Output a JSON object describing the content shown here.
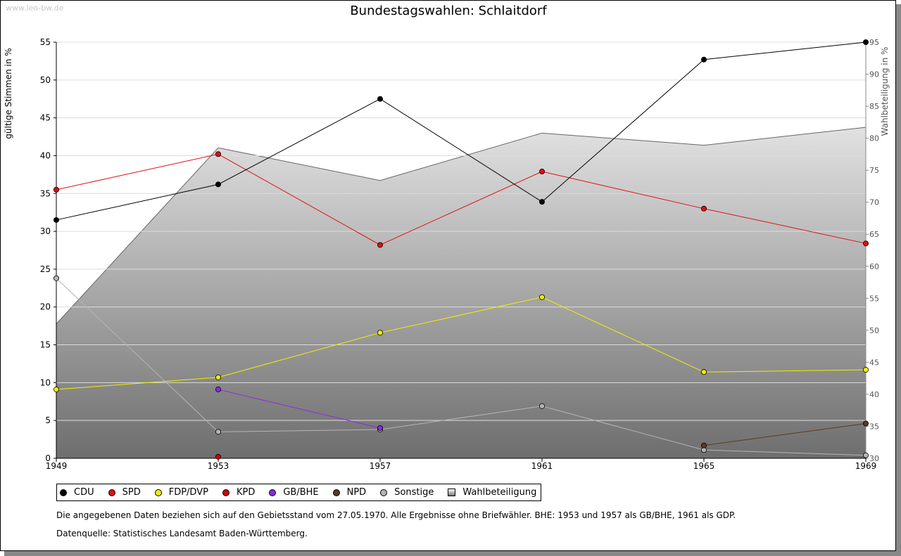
{
  "watermark": "www.leo-bw.de",
  "notes": [
    "Die angegebenen Daten beziehen sich auf den Gebietsstand vom 27.05.1970. Alle Ergebnisse ohne Briefwähler. BHE: 1953 und 1957 als GB/BHE, 1961 als GDP.",
    "Datenquelle: Statistisches Landesamt Baden-Württemberg."
  ],
  "chart_data": {
    "type": "line",
    "title": "Bundestagswahlen: Schlaitdorf",
    "xlabel": "",
    "ylabel": "gültige Stimmen in %",
    "y2label": "Wahlbeteiligung in %",
    "x": [
      1949,
      1953,
      1957,
      1961,
      1965,
      1969
    ],
    "ylim": [
      0,
      55
    ],
    "yticks": [
      0,
      5,
      10,
      15,
      20,
      25,
      30,
      35,
      40,
      45,
      50,
      55
    ],
    "y2lim": [
      30,
      95
    ],
    "y2ticks": [
      30,
      35,
      40,
      45,
      50,
      55,
      60,
      65,
      70,
      75,
      80,
      85,
      90,
      95
    ],
    "grid": true,
    "legend_position": "bottom",
    "series": [
      {
        "name": "CDU",
        "color": "#000000",
        "values": [
          31.5,
          36.2,
          47.5,
          33.9,
          52.7,
          55.0
        ]
      },
      {
        "name": "SPD",
        "color": "#e01010",
        "values": [
          35.5,
          40.2,
          28.2,
          37.9,
          33.0,
          28.4
        ]
      },
      {
        "name": "FDP/DVP",
        "color": "#f0f000",
        "values": [
          9.1,
          10.7,
          16.6,
          21.3,
          11.4,
          11.7
        ]
      },
      {
        "name": "KPD",
        "color": "#cc0000",
        "values": [
          null,
          0.2,
          null,
          null,
          null,
          null
        ]
      },
      {
        "name": "GB/BHE",
        "color": "#8a2be2",
        "values": [
          null,
          9.1,
          4.0,
          null,
          null,
          null
        ]
      },
      {
        "name": "NPD",
        "color": "#5a3a22",
        "values": [
          null,
          null,
          null,
          null,
          1.7,
          4.6
        ]
      },
      {
        "name": "Sonstige",
        "color": "#b4b4b4",
        "values": [
          23.8,
          3.5,
          3.8,
          6.9,
          1.1,
          0.4
        ]
      }
    ],
    "turnout": {
      "name": "Wahlbeteiligung",
      "axis": "right",
      "values": [
        51.0,
        78.5,
        73.4,
        80.8,
        78.9,
        81.7
      ]
    }
  }
}
